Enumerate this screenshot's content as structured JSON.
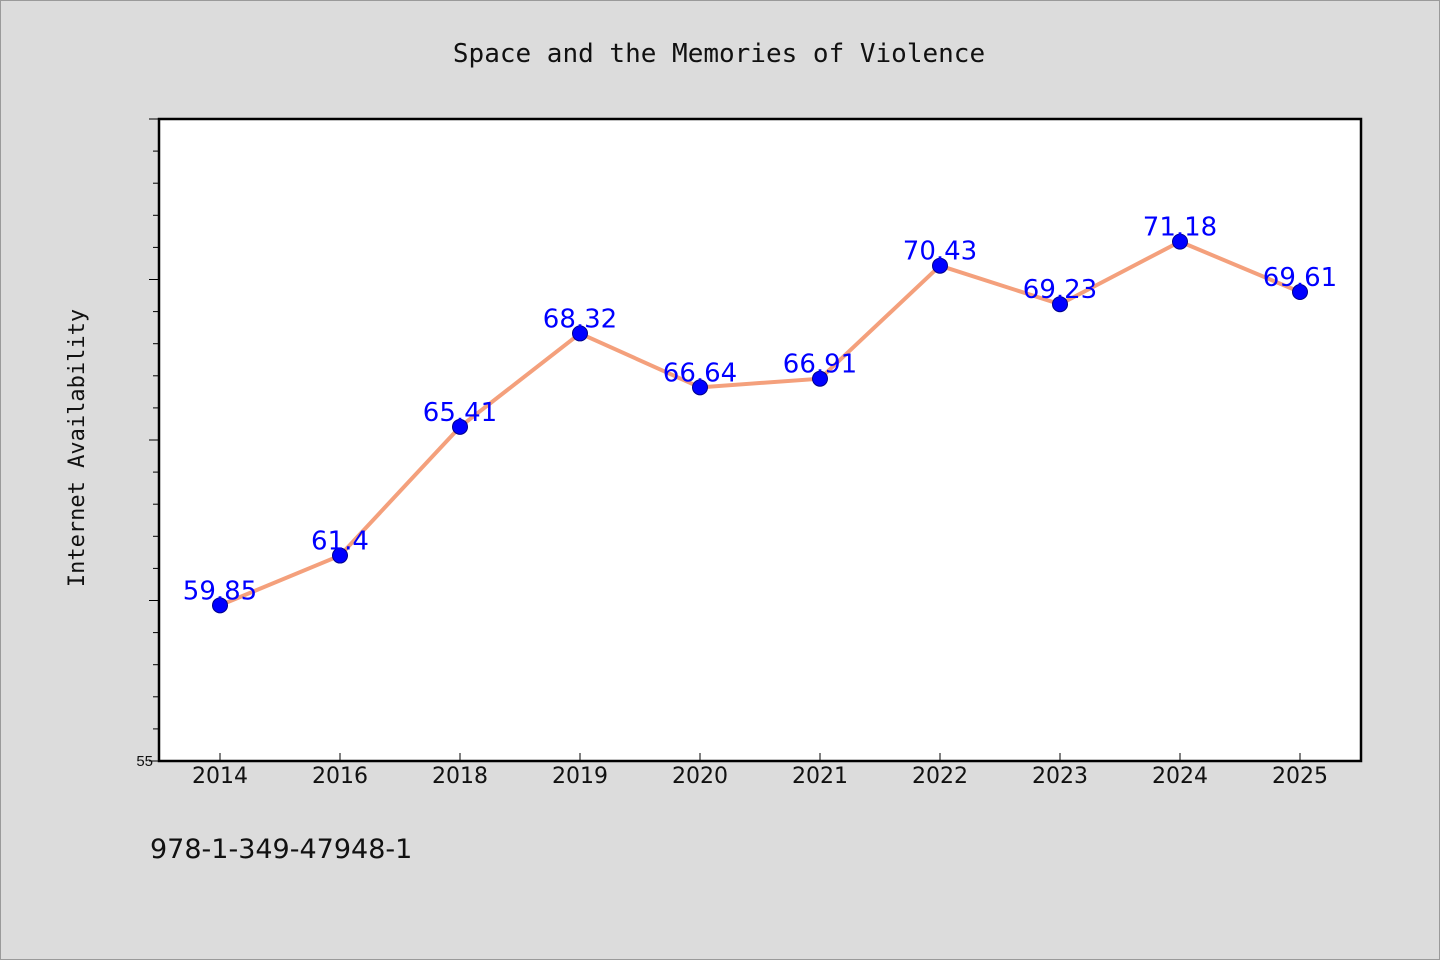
{
  "chart_data": {
    "type": "line",
    "title": "Space and the Memories of Violence",
    "xlabel": "",
    "ylabel": "Internet Availability",
    "categories": [
      "2014",
      "2016",
      "2018",
      "2019",
      "2020",
      "2021",
      "2022",
      "2023",
      "2024",
      "2025"
    ],
    "values": [
      59.85,
      61.4,
      65.41,
      68.32,
      66.64,
      66.91,
      70.43,
      69.23,
      71.18,
      69.61
    ],
    "data_labels": [
      "59.85",
      "61.4",
      "65.41",
      "68.32",
      "66.64",
      "66.91",
      "70.43",
      "69.23",
      "71.18",
      "69.61"
    ],
    "ylim": [
      55,
      75
    ],
    "ytick_labels": [
      "55"
    ],
    "grid": false,
    "legend": "none",
    "colors": {
      "line": "#f4a07c",
      "marker": "#0000ff",
      "data_label": "#0000ff"
    }
  },
  "footnote": "978-1-349-47948-1"
}
